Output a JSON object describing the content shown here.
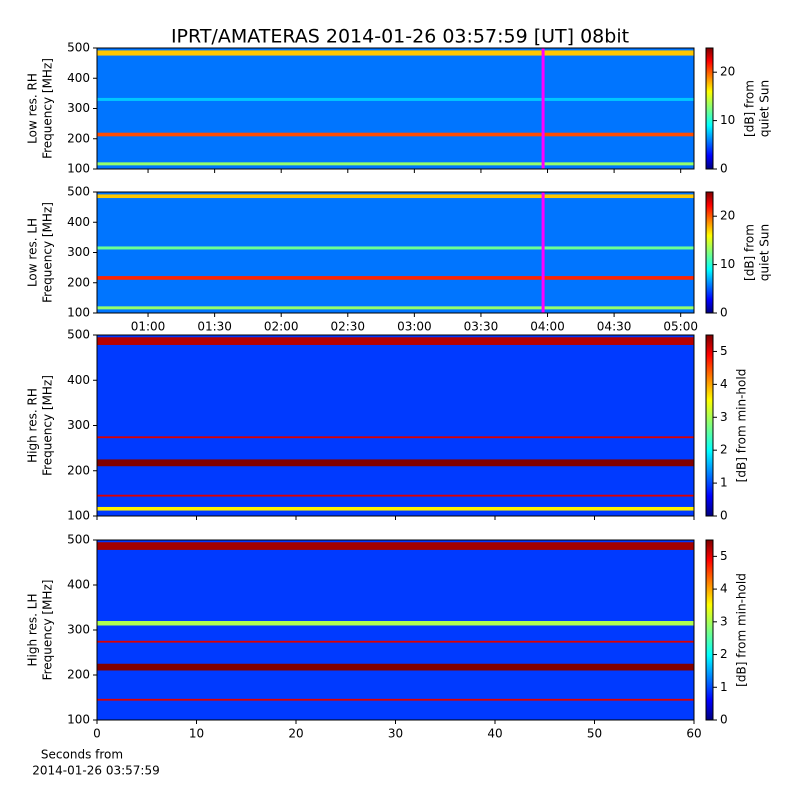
{
  "chart_data": [
    {
      "type": "heatmap",
      "title": "IPRT/AMATERAS 2014-01-26 03:57:59 [UT]   08bit",
      "ylabel": [
        "Low res. RH",
        "Frequency [MHz]"
      ],
      "ylim": [
        100,
        500
      ],
      "yticks": [
        100,
        200,
        300,
        400,
        500
      ],
      "xlim": [
        37,
        306
      ],
      "colorbar": {
        "label": [
          "[dB] from",
          "quiet Sun"
        ],
        "lim": [
          0,
          25
        ],
        "ticks": [
          0,
          10,
          20
        ]
      },
      "background": 6,
      "bands": [
        {
          "low": 475,
          "high": 492,
          "level": 17
        },
        {
          "low": 208,
          "high": 220,
          "level": 20
        },
        {
          "low": 112,
          "high": 122,
          "level": 13
        },
        {
          "low": 325,
          "high": 335,
          "level": 8
        }
      ],
      "cursor": {
        "x": 238,
        "color": "#ff00ff"
      }
    },
    {
      "type": "heatmap",
      "ylabel": [
        "Low res. LH",
        "Frequency [MHz]"
      ],
      "ylim": [
        100,
        500
      ],
      "yticks": [
        100,
        200,
        300,
        400,
        500
      ],
      "xlim": [
        37,
        306
      ],
      "xticks": [
        {
          "value": 60,
          "label": "01:00"
        },
        {
          "value": 90,
          "label": "01:30"
        },
        {
          "value": 120,
          "label": "02:00"
        },
        {
          "value": 150,
          "label": "02:30"
        },
        {
          "value": 180,
          "label": "03:00"
        },
        {
          "value": 210,
          "label": "03:30"
        },
        {
          "value": 240,
          "label": "04:00"
        },
        {
          "value": 270,
          "label": "04:30"
        },
        {
          "value": 300,
          "label": "05:00"
        }
      ],
      "colorbar": {
        "label": [
          "[dB] from",
          "quiet Sun"
        ],
        "lim": [
          0,
          25
        ],
        "ticks": [
          0,
          10,
          20
        ]
      },
      "background": 6,
      "bands": [
        {
          "low": 480,
          "high": 492,
          "level": 17
        },
        {
          "low": 310,
          "high": 320,
          "level": 12
        },
        {
          "low": 210,
          "high": 222,
          "level": 21
        },
        {
          "low": 112,
          "high": 122,
          "level": 13
        }
      ],
      "cursor": {
        "x": 238,
        "color": "#ff00ff"
      }
    },
    {
      "type": "heatmap",
      "ylabel": [
        "High res. RH",
        "Frequency [MHz]"
      ],
      "ylim": [
        100,
        500
      ],
      "yticks": [
        100,
        200,
        300,
        400,
        500
      ],
      "xlim": [
        0,
        60
      ],
      "colorbar": {
        "label": [
          "[dB] from min-hold"
        ],
        "lim": [
          0,
          5.5
        ],
        "ticks": [
          0,
          1,
          2,
          3,
          4,
          5
        ]
      },
      "background": 1,
      "bands": [
        {
          "low": 478,
          "high": 495,
          "level": 5.2
        },
        {
          "low": 272,
          "high": 276,
          "level": 5
        },
        {
          "low": 210,
          "high": 225,
          "level": 5.5
        },
        {
          "low": 143,
          "high": 147,
          "level": 5
        },
        {
          "low": 112,
          "high": 120,
          "level": 3.5
        }
      ]
    },
    {
      "type": "heatmap",
      "ylabel": [
        "High res. LH",
        "Frequency [MHz]"
      ],
      "ylim": [
        100,
        500
      ],
      "yticks": [
        100,
        200,
        300,
        400,
        500
      ],
      "xlim": [
        0,
        60
      ],
      "xticks": [
        0,
        10,
        20,
        30,
        40,
        50,
        60
      ],
      "xlabel": [
        "Seconds from",
        "2014-01-26 03:57:59"
      ],
      "colorbar": {
        "label": [
          "[dB] from min-hold"
        ],
        "lim": [
          0,
          5.5
        ],
        "ticks": [
          0,
          1,
          2,
          3,
          4,
          5
        ]
      },
      "background": 1,
      "bands": [
        {
          "low": 478,
          "high": 495,
          "level": 5.3
        },
        {
          "low": 310,
          "high": 320,
          "level": 3
        },
        {
          "low": 272,
          "high": 276,
          "level": 5
        },
        {
          "low": 210,
          "high": 225,
          "level": 5.5
        },
        {
          "low": 143,
          "high": 147,
          "level": 5
        }
      ]
    }
  ]
}
